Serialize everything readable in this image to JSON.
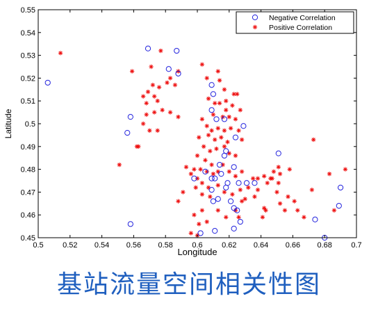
{
  "caption": "基站流量空间相关性图",
  "chart_data": {
    "type": "scatter",
    "xlabel": "Longitude",
    "ylabel": "Latitude",
    "xlim": [
      0.5,
      0.7
    ],
    "ylim": [
      0.45,
      0.55
    ],
    "xticks": [
      "0.5",
      "0.52",
      "0.54",
      "0.56",
      "0.58",
      "0.6",
      "0.62",
      "0.64",
      "0.66",
      "0.68",
      "0.7"
    ],
    "yticks": [
      "0.45",
      "0.46",
      "0.47",
      "0.48",
      "0.49",
      "0.5",
      "0.51",
      "0.52",
      "0.53",
      "0.54",
      "0.55"
    ],
    "grid": false,
    "legend_position": "top-right",
    "colors": {
      "negative": "#2222dd",
      "positive": "#ee1111",
      "axis": "#000000"
    },
    "series": [
      {
        "name": "Negative Correlation",
        "marker": "circle",
        "points": [
          [
            0.506,
            0.518
          ],
          [
            0.569,
            0.533
          ],
          [
            0.582,
            0.524
          ],
          [
            0.588,
            0.522
          ],
          [
            0.587,
            0.532
          ],
          [
            0.558,
            0.503
          ],
          [
            0.556,
            0.496
          ],
          [
            0.558,
            0.456
          ],
          [
            0.609,
            0.517
          ],
          [
            0.61,
            0.513
          ],
          [
            0.609,
            0.506
          ],
          [
            0.612,
            0.502
          ],
          [
            0.617,
            0.502
          ],
          [
            0.629,
            0.499
          ],
          [
            0.624,
            0.494
          ],
          [
            0.618,
            0.488
          ],
          [
            0.617,
            0.486
          ],
          [
            0.623,
            0.481
          ],
          [
            0.614,
            0.482
          ],
          [
            0.615,
            0.478
          ],
          [
            0.609,
            0.476
          ],
          [
            0.598,
            0.476
          ],
          [
            0.611,
            0.476
          ],
          [
            0.619,
            0.474
          ],
          [
            0.626,
            0.474
          ],
          [
            0.631,
            0.474
          ],
          [
            0.636,
            0.474
          ],
          [
            0.651,
            0.487
          ],
          [
            0.609,
            0.471
          ],
          [
            0.613,
            0.467
          ],
          [
            0.61,
            0.466
          ],
          [
            0.621,
            0.466
          ],
          [
            0.623,
            0.463
          ],
          [
            0.625,
            0.462
          ],
          [
            0.627,
            0.457
          ],
          [
            0.623,
            0.454
          ],
          [
            0.611,
            0.453
          ],
          [
            0.602,
            0.452
          ],
          [
            0.674,
            0.458
          ],
          [
            0.68,
            0.45
          ],
          [
            0.689,
            0.464
          ],
          [
            0.69,
            0.472
          ],
          [
            0.618,
            0.472
          ],
          [
            0.605,
            0.479
          ]
        ]
      },
      {
        "name": "Positive Correlation",
        "marker": "asterisk",
        "points": [
          [
            0.514,
            0.531
          ],
          [
            0.559,
            0.523
          ],
          [
            0.571,
            0.525
          ],
          [
            0.577,
            0.532
          ],
          [
            0.583,
            0.52
          ],
          [
            0.588,
            0.523
          ],
          [
            0.586,
            0.517
          ],
          [
            0.581,
            0.518
          ],
          [
            0.576,
            0.516
          ],
          [
            0.572,
            0.517
          ],
          [
            0.569,
            0.514
          ],
          [
            0.573,
            0.512
          ],
          [
            0.566,
            0.512
          ],
          [
            0.575,
            0.51
          ],
          [
            0.568,
            0.509
          ],
          [
            0.578,
            0.506
          ],
          [
            0.573,
            0.505
          ],
          [
            0.583,
            0.505
          ],
          [
            0.588,
            0.503
          ],
          [
            0.568,
            0.504
          ],
          [
            0.566,
            0.5
          ],
          [
            0.57,
            0.497
          ],
          [
            0.575,
            0.497
          ],
          [
            0.562,
            0.49
          ],
          [
            0.563,
            0.49
          ],
          [
            0.551,
            0.482
          ],
          [
            0.603,
            0.526
          ],
          [
            0.606,
            0.52
          ],
          [
            0.613,
            0.523
          ],
          [
            0.614,
            0.519
          ],
          [
            0.617,
            0.515
          ],
          [
            0.618,
            0.51
          ],
          [
            0.622,
            0.508
          ],
          [
            0.623,
            0.513
          ],
          [
            0.625,
            0.513
          ],
          [
            0.607,
            0.511
          ],
          [
            0.611,
            0.509
          ],
          [
            0.614,
            0.509
          ],
          [
            0.618,
            0.506
          ],
          [
            0.61,
            0.504
          ],
          [
            0.616,
            0.503
          ],
          [
            0.62,
            0.503
          ],
          [
            0.624,
            0.502
          ],
          [
            0.627,
            0.506
          ],
          [
            0.603,
            0.502
          ],
          [
            0.606,
            0.499
          ],
          [
            0.613,
            0.498
          ],
          [
            0.609,
            0.497
          ],
          [
            0.617,
            0.497
          ],
          [
            0.621,
            0.498
          ],
          [
            0.626,
            0.497
          ],
          [
            0.628,
            0.493
          ],
          [
            0.601,
            0.494
          ],
          [
            0.607,
            0.495
          ],
          [
            0.611,
            0.493
          ],
          [
            0.615,
            0.494
          ],
          [
            0.619,
            0.492
          ],
          [
            0.604,
            0.49
          ],
          [
            0.608,
            0.488
          ],
          [
            0.612,
            0.489
          ],
          [
            0.617,
            0.49
          ],
          [
            0.62,
            0.487
          ],
          [
            0.624,
            0.486
          ],
          [
            0.6,
            0.486
          ],
          [
            0.605,
            0.484
          ],
          [
            0.609,
            0.482
          ],
          [
            0.598,
            0.48
          ],
          [
            0.602,
            0.48
          ],
          [
            0.606,
            0.479
          ],
          [
            0.61,
            0.478
          ],
          [
            0.613,
            0.479
          ],
          [
            0.616,
            0.482
          ],
          [
            0.62,
            0.479
          ],
          [
            0.624,
            0.477
          ],
          [
            0.628,
            0.479
          ],
          [
            0.596,
            0.478
          ],
          [
            0.6,
            0.476
          ],
          [
            0.603,
            0.474
          ],
          [
            0.607,
            0.472
          ],
          [
            0.613,
            0.473
          ],
          [
            0.599,
            0.472
          ],
          [
            0.603,
            0.469
          ],
          [
            0.608,
            0.468
          ],
          [
            0.617,
            0.47
          ],
          [
            0.622,
            0.469
          ],
          [
            0.627,
            0.471
          ],
          [
            0.632,
            0.472
          ],
          [
            0.635,
            0.476
          ],
          [
            0.638,
            0.476
          ],
          [
            0.642,
            0.477
          ],
          [
            0.646,
            0.476
          ],
          [
            0.648,
            0.479
          ],
          [
            0.651,
            0.481
          ],
          [
            0.652,
            0.478
          ],
          [
            0.647,
            0.476
          ],
          [
            0.651,
            0.474
          ],
          [
            0.636,
            0.468
          ],
          [
            0.642,
            0.463
          ],
          [
            0.643,
            0.462
          ],
          [
            0.641,
            0.459
          ],
          [
            0.652,
            0.465
          ],
          [
            0.655,
            0.462
          ],
          [
            0.657,
            0.468
          ],
          [
            0.661,
            0.466
          ],
          [
            0.663,
            0.462
          ],
          [
            0.667,
            0.459
          ],
          [
            0.672,
            0.471
          ],
          [
            0.673,
            0.493
          ],
          [
            0.683,
            0.478
          ],
          [
            0.686,
            0.462
          ],
          [
            0.693,
            0.48
          ],
          [
            0.628,
            0.466
          ],
          [
            0.624,
            0.462
          ],
          [
            0.618,
            0.459
          ],
          [
            0.613,
            0.462
          ],
          [
            0.603,
            0.462
          ],
          [
            0.598,
            0.46
          ],
          [
            0.601,
            0.456
          ],
          [
            0.606,
            0.457
          ],
          [
            0.6,
            0.451
          ],
          [
            0.596,
            0.452
          ],
          [
            0.591,
            0.47
          ],
          [
            0.588,
            0.466
          ],
          [
            0.593,
            0.481
          ],
          [
            0.626,
            0.459
          ],
          [
            0.658,
            0.48
          ],
          [
            0.65,
            0.47
          ],
          [
            0.638,
            0.471
          ],
          [
            0.644,
            0.474
          ],
          [
            0.63,
            0.467
          ]
        ]
      }
    ]
  }
}
